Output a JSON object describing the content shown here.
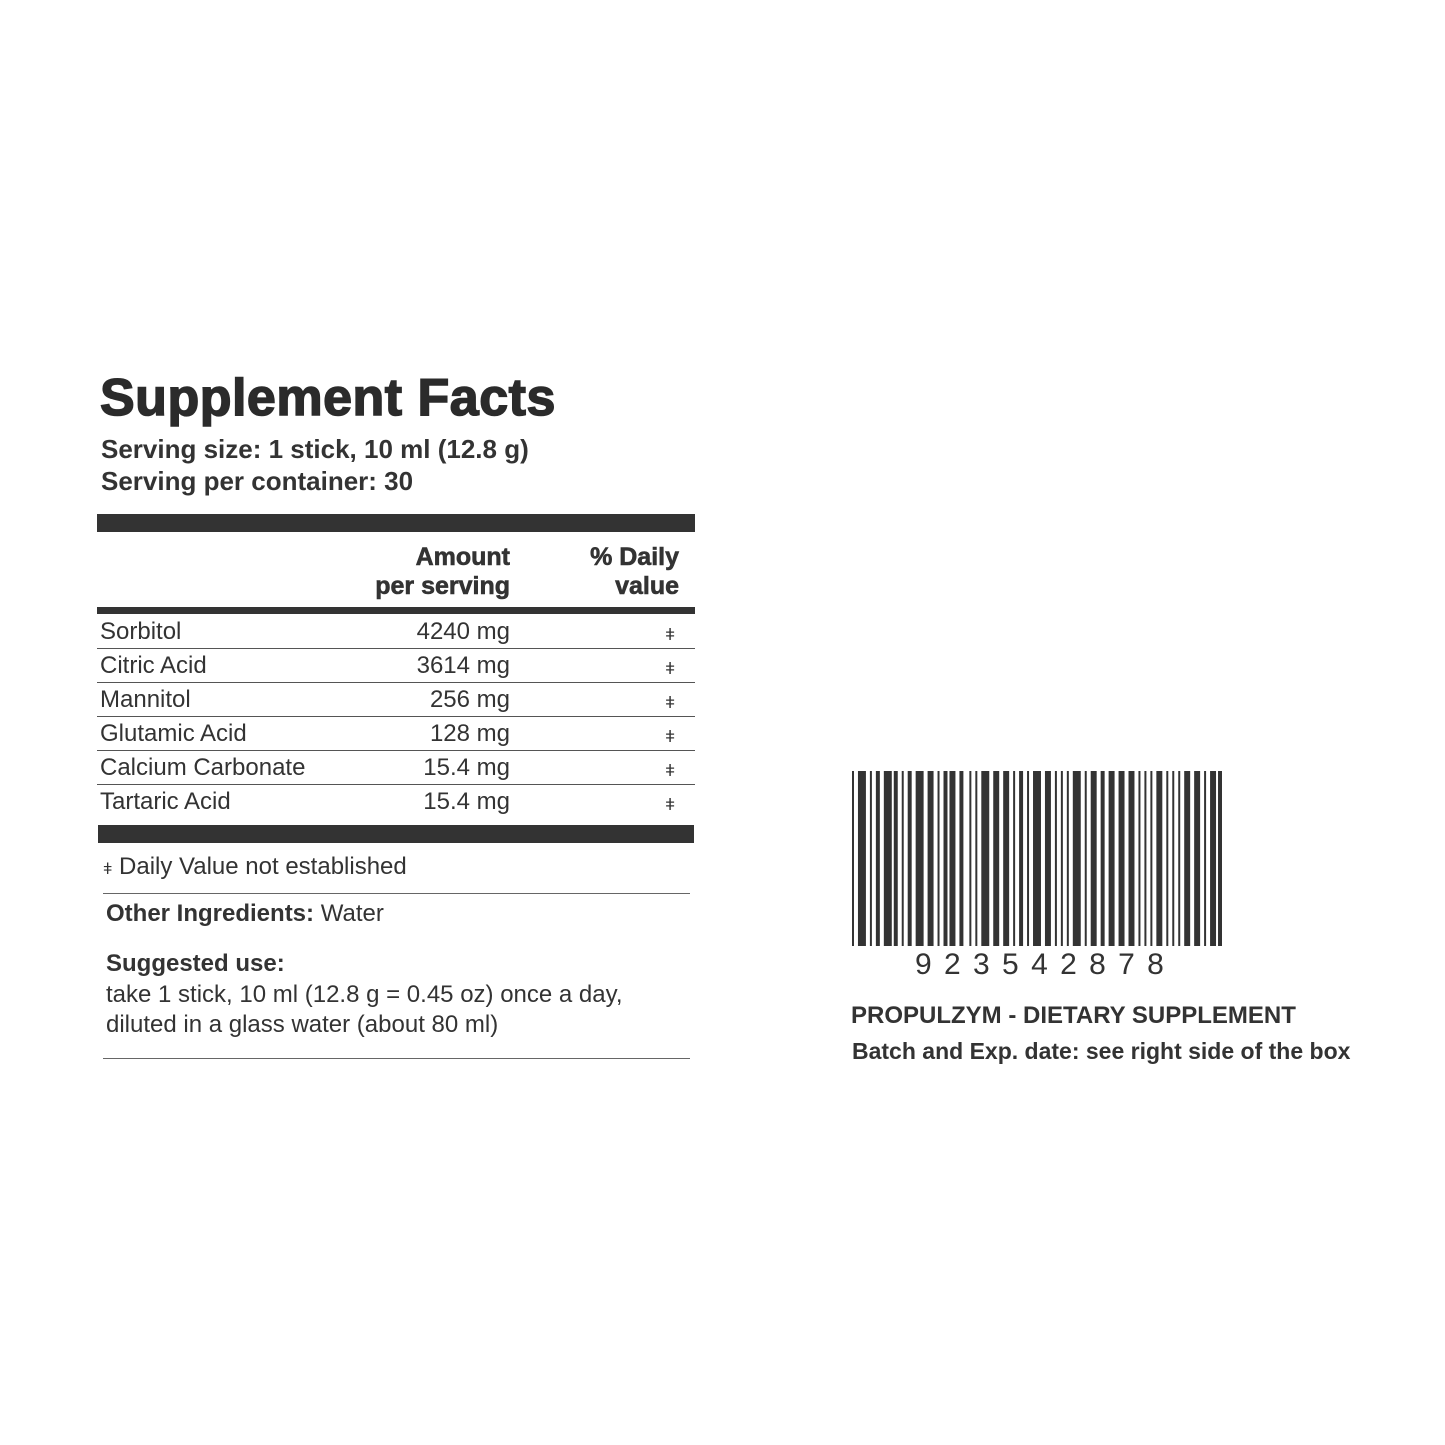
{
  "title": "Supplement Facts",
  "serving_size": "Serving size: 1 stick, 10 ml (12.8 g)",
  "servings_per_container": "Serving per container: 30",
  "table": {
    "header_amount_1": "Amount",
    "header_amount_2": "per serving",
    "header_dv_1": "% Daily",
    "header_dv_2": "value",
    "rows": [
      {
        "name": "Sorbitol",
        "amount": "4240 mg",
        "dv": "ǂ"
      },
      {
        "name": "Citric Acid",
        "amount": "3614 mg",
        "dv": "ǂ"
      },
      {
        "name": "Mannitol",
        "amount": "256 mg",
        "dv": "ǂ"
      },
      {
        "name": "Glutamic Acid",
        "amount": "128 mg",
        "dv": "ǂ"
      },
      {
        "name": "Calcium Carbonate",
        "amount": "15.4 mg",
        "dv": "ǂ"
      },
      {
        "name": "Tartaric Acid",
        "amount": "15.4 mg",
        "dv": "ǂ"
      }
    ]
  },
  "footnote_symbol": "ǂ",
  "footnote": "Daily Value not established",
  "other_ingredients_label": "Other Ingredients:",
  "other_ingredients_value": "Water",
  "suggested_use_label": "Suggested use:",
  "suggested_use_line1": "take 1 stick, 10 ml (12.8 g = 0.45 oz) once a day,",
  "suggested_use_line2": "diluted in a glass water (about 80 ml)",
  "barcode_number": "9 2 3 5 4 2 8 7 8",
  "product_line": "PROPULZYM - DIETARY SUPPLEMENT",
  "batch_line": "Batch and Exp. date: see right side of the box"
}
